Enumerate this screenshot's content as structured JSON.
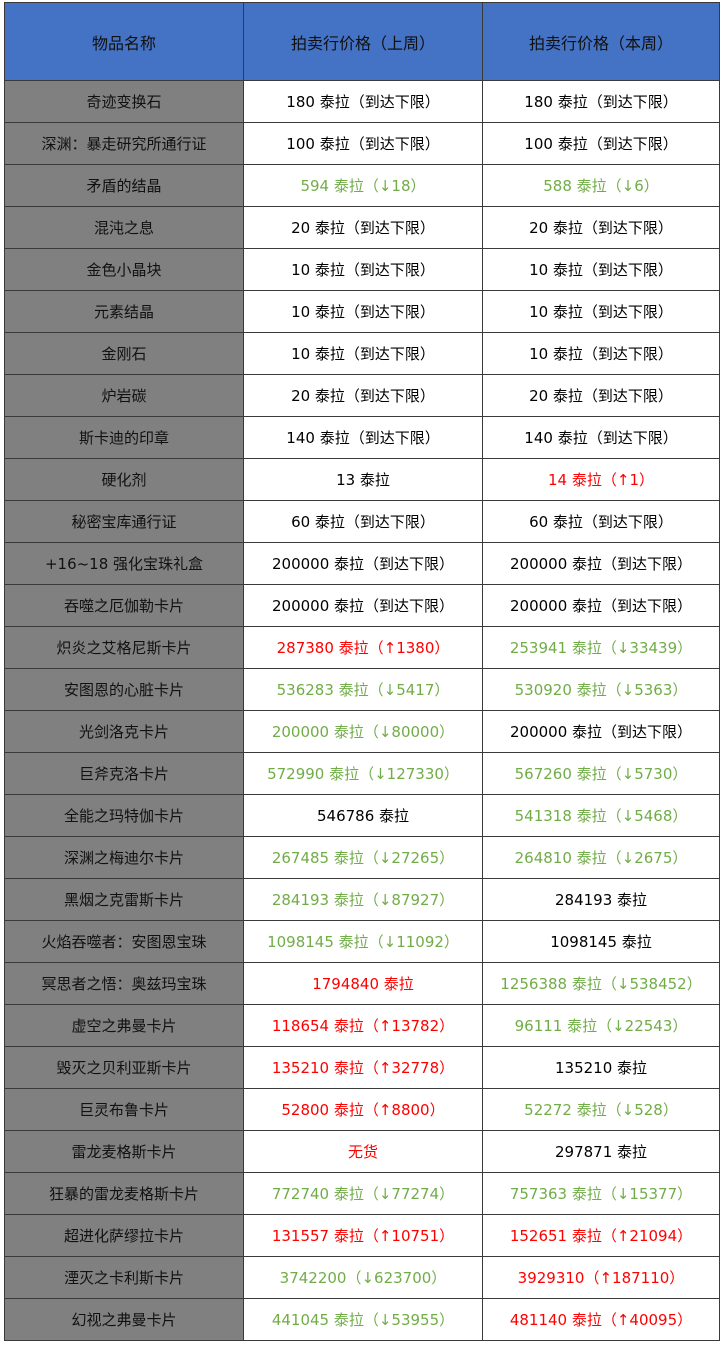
{
  "table": {
    "header": [
      "物品名称",
      "拍卖行价格（上周）",
      "拍卖行价格（本周）"
    ],
    "rows": [
      {
        "name": "奇迹变换石",
        "last": {
          "text": "180 泰拉（到达下限）",
          "color": "#000000"
        },
        "this": {
          "text": "180 泰拉（到达下限）",
          "color": "#000000"
        }
      },
      {
        "name": "深渊：暴走研究所通行证",
        "last": {
          "text": "100 泰拉（到达下限）",
          "color": "#000000"
        },
        "this": {
          "text": "100 泰拉（到达下限）",
          "color": "#000000"
        }
      },
      {
        "name": "矛盾的结晶",
        "last": {
          "text": "594 泰拉（↓18）",
          "color": "#70ad47"
        },
        "this": {
          "text": "588 泰拉（↓6）",
          "color": "#70ad47"
        }
      },
      {
        "name": "混沌之息",
        "last": {
          "text": "20 泰拉（到达下限）",
          "color": "#000000"
        },
        "this": {
          "text": "20 泰拉（到达下限）",
          "color": "#000000"
        }
      },
      {
        "name": "金色小晶块",
        "last": {
          "text": "10 泰拉（到达下限）",
          "color": "#000000"
        },
        "this": {
          "text": "10 泰拉（到达下限）",
          "color": "#000000"
        }
      },
      {
        "name": "元素结晶",
        "last": {
          "text": "10 泰拉（到达下限）",
          "color": "#000000"
        },
        "this": {
          "text": "10 泰拉（到达下限）",
          "color": "#000000"
        }
      },
      {
        "name": "金刚石",
        "last": {
          "text": "10 泰拉（到达下限）",
          "color": "#000000"
        },
        "this": {
          "text": "10 泰拉（到达下限）",
          "color": "#000000"
        }
      },
      {
        "name": "炉岩碳",
        "last": {
          "text": "20 泰拉（到达下限）",
          "color": "#000000"
        },
        "this": {
          "text": "20 泰拉（到达下限）",
          "color": "#000000"
        }
      },
      {
        "name": "斯卡迪的印章",
        "last": {
          "text": "140 泰拉（到达下限）",
          "color": "#000000"
        },
        "this": {
          "text": "140 泰拉（到达下限）",
          "color": "#000000"
        }
      },
      {
        "name": "硬化剂",
        "last": {
          "text": "13 泰拉",
          "color": "#000000"
        },
        "this": {
          "text": "14 泰拉（↑1）",
          "color": "#ff0000"
        }
      },
      {
        "name": "秘密宝库通行证",
        "last": {
          "text": "60 泰拉（到达下限）",
          "color": "#000000"
        },
        "this": {
          "text": "60 泰拉（到达下限）",
          "color": "#000000"
        }
      },
      {
        "name": "+16~18 强化宝珠礼盒",
        "last": {
          "text": "200000 泰拉（到达下限）",
          "color": "#000000"
        },
        "this": {
          "text": "200000 泰拉（到达下限）",
          "color": "#000000"
        }
      },
      {
        "name": "吞噬之厄伽勒卡片",
        "last": {
          "text": "200000 泰拉（到达下限）",
          "color": "#000000"
        },
        "this": {
          "text": "200000 泰拉（到达下限）",
          "color": "#000000"
        }
      },
      {
        "name": "炽炎之艾格尼斯卡片",
        "last": {
          "text": "287380 泰拉（↑1380）",
          "color": "#ff0000"
        },
        "this": {
          "text": "253941 泰拉（↓33439）",
          "color": "#70ad47"
        }
      },
      {
        "name": "安图恩的心脏卡片",
        "last": {
          "text": "536283 泰拉（↓5417）",
          "color": "#70ad47"
        },
        "this": {
          "text": "530920 泰拉（↓5363）",
          "color": "#70ad47"
        }
      },
      {
        "name": "光剑洛克卡片",
        "last": {
          "text": "200000 泰拉（↓80000）",
          "color": "#70ad47"
        },
        "this": {
          "text": "200000 泰拉（到达下限）",
          "color": "#000000"
        }
      },
      {
        "name": "巨斧克洛卡片",
        "last": {
          "text": "572990 泰拉（↓127330）",
          "color": "#70ad47"
        },
        "this": {
          "text": "567260 泰拉（↓5730）",
          "color": "#70ad47"
        }
      },
      {
        "name": "全能之玛特伽卡片",
        "last": {
          "text": "546786 泰拉",
          "color": "#000000"
        },
        "this": {
          "text": "541318 泰拉（↓5468）",
          "color": "#70ad47"
        }
      },
      {
        "name": "深渊之梅迪尔卡片",
        "last": {
          "text": "267485 泰拉（↓27265）",
          "color": "#70ad47"
        },
        "this": {
          "text": "264810 泰拉（↓2675）",
          "color": "#70ad47"
        }
      },
      {
        "name": "黑烟之克雷斯卡片",
        "last": {
          "text": "284193 泰拉（↓87927）",
          "color": "#70ad47"
        },
        "this": {
          "text": "284193 泰拉",
          "color": "#000000"
        }
      },
      {
        "name": "火焰吞噬者：安图恩宝珠",
        "last": {
          "text": "1098145 泰拉（↓11092）",
          "color": "#70ad47"
        },
        "this": {
          "text": "1098145 泰拉",
          "color": "#000000"
        }
      },
      {
        "name": "冥思者之悟：奥兹玛宝珠",
        "last": {
          "text": "1794840 泰拉",
          "color": "#ff0000"
        },
        "this": {
          "text": "1256388 泰拉（↓538452）",
          "color": "#70ad47"
        }
      },
      {
        "name": "虚空之弗曼卡片",
        "last": {
          "text": "118654 泰拉（↑13782）",
          "color": "#ff0000"
        },
        "this": {
          "text": "96111 泰拉（↓22543）",
          "color": "#70ad47"
        }
      },
      {
        "name": "毁灭之贝利亚斯卡片",
        "last": {
          "text": "135210 泰拉（↑32778）",
          "color": "#ff0000"
        },
        "this": {
          "text": "135210 泰拉",
          "color": "#000000"
        }
      },
      {
        "name": "巨灵布鲁卡片",
        "last": {
          "text": "52800 泰拉（↑8800）",
          "color": "#ff0000"
        },
        "this": {
          "text": "52272 泰拉（↓528）",
          "color": "#70ad47"
        }
      },
      {
        "name": "雷龙麦格斯卡片",
        "last": {
          "text": "无货",
          "color": "#ff0000"
        },
        "this": {
          "text": "297871 泰拉",
          "color": "#000000"
        }
      },
      {
        "name": "狂暴的雷龙麦格斯卡片",
        "last": {
          "text": "772740 泰拉（↓77274）",
          "color": "#70ad47"
        },
        "this": {
          "text": "757363 泰拉（↓15377）",
          "color": "#70ad47"
        }
      },
      {
        "name": "超进化萨缪拉卡片",
        "last": {
          "text": "131557 泰拉（↑10751）",
          "color": "#ff0000"
        },
        "this": {
          "text": "152651 泰拉（↑21094）",
          "color": "#ff0000"
        }
      },
      {
        "name": "湮灭之卡利斯卡片",
        "last": {
          "text": "3742200（↓623700）",
          "color": "#70ad47"
        },
        "this": {
          "text": "3929310（↑187110）",
          "color": "#ff0000"
        }
      },
      {
        "name": "幻视之弗曼卡片",
        "last": {
          "text": "441045 泰拉（↓53955）",
          "color": "#70ad47"
        },
        "this": {
          "text": "481140 泰拉（↑40095）",
          "color": "#ff0000"
        }
      }
    ]
  }
}
